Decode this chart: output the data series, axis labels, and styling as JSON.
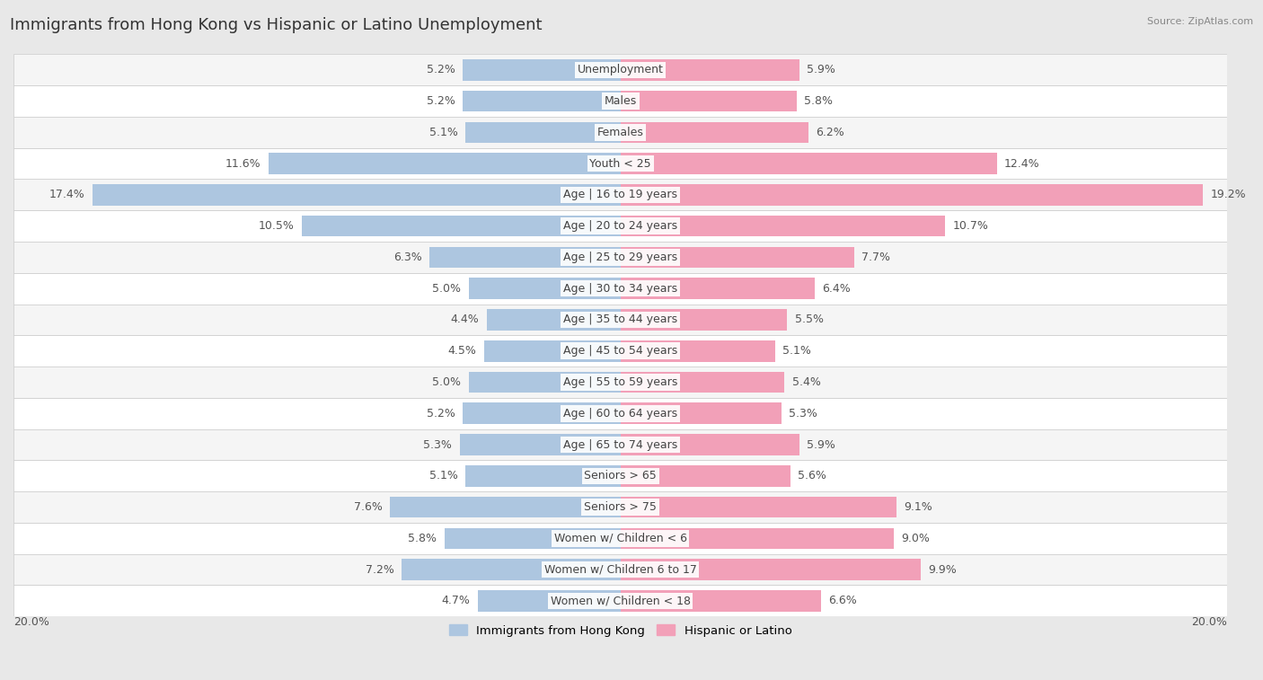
{
  "title": "Immigrants from Hong Kong vs Hispanic or Latino Unemployment",
  "source": "Source: ZipAtlas.com",
  "categories": [
    "Unemployment",
    "Males",
    "Females",
    "Youth < 25",
    "Age | 16 to 19 years",
    "Age | 20 to 24 years",
    "Age | 25 to 29 years",
    "Age | 30 to 34 years",
    "Age | 35 to 44 years",
    "Age | 45 to 54 years",
    "Age | 55 to 59 years",
    "Age | 60 to 64 years",
    "Age | 65 to 74 years",
    "Seniors > 65",
    "Seniors > 75",
    "Women w/ Children < 6",
    "Women w/ Children 6 to 17",
    "Women w/ Children < 18"
  ],
  "hk_values": [
    5.2,
    5.2,
    5.1,
    11.6,
    17.4,
    10.5,
    6.3,
    5.0,
    4.4,
    4.5,
    5.0,
    5.2,
    5.3,
    5.1,
    7.6,
    5.8,
    7.2,
    4.7
  ],
  "hl_values": [
    5.9,
    5.8,
    6.2,
    12.4,
    19.2,
    10.7,
    7.7,
    6.4,
    5.5,
    5.1,
    5.4,
    5.3,
    5.9,
    5.6,
    9.1,
    9.0,
    9.9,
    6.6
  ],
  "hk_color": "#adc6e0",
  "hl_color": "#f2a0b8",
  "bg_color": "#e8e8e8",
  "row_bg_even": "#f5f5f5",
  "row_bg_odd": "#ffffff",
  "axis_max": 20.0,
  "label_fontsize": 9,
  "cat_fontsize": 9,
  "title_fontsize": 13,
  "legend_hk": "Immigrants from Hong Kong",
  "legend_hl": "Hispanic or Latino"
}
